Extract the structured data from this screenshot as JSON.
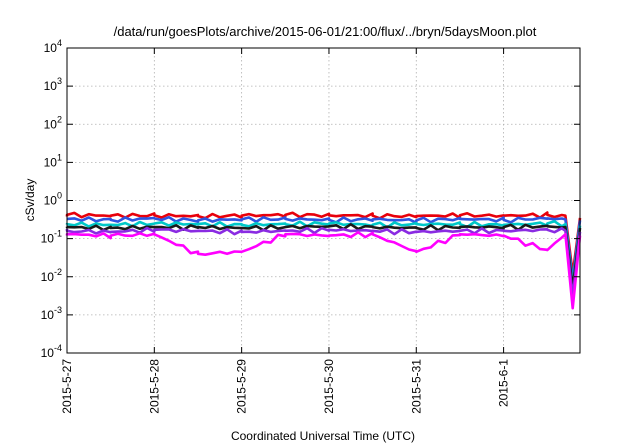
{
  "chart_data": {
    "type": "line",
    "title": "/data/run/goesPlots/archive/2015-06-01/21:00/flux/../bryn/5daysMoon.plot",
    "xlabel": "Coordinated Universal Time (UTC)",
    "ylabel": "cSv/day",
    "y_scale": "log",
    "ylim": [
      0.0001,
      10000
    ],
    "y_ticks": [
      {
        "value": 0.0001,
        "base": "10",
        "exp": "-4"
      },
      {
        "value": 0.001,
        "base": "10",
        "exp": "-3"
      },
      {
        "value": 0.01,
        "base": "10",
        "exp": "-2"
      },
      {
        "value": 0.1,
        "base": "10",
        "exp": "-1"
      },
      {
        "value": 1,
        "base": "10",
        "exp": "0"
      },
      {
        "value": 10,
        "base": "10",
        "exp": "1"
      },
      {
        "value": 100,
        "base": "10",
        "exp": "2"
      },
      {
        "value": 1000,
        "base": "10",
        "exp": "3"
      },
      {
        "value": 10000,
        "base": "10",
        "exp": "4"
      }
    ],
    "x_ticks": [
      "2015-5-27",
      "2015-5-28",
      "2015-5-29",
      "2015-5-30",
      "2015-5-31",
      "2015-6-1"
    ],
    "xlim": [
      "2015-05-27 00:00",
      "2015-06-01 21:00"
    ],
    "grid": true,
    "legend": "none",
    "series": [
      {
        "color": "#e8000b",
        "baseline": 0.4,
        "x": [
          "2015-05-27 00:00",
          "2015-05-27 12:00",
          "2015-05-28 00:00",
          "2015-05-28 12:00",
          "2015-05-29 00:00",
          "2015-05-29 12:00",
          "2015-05-30 00:00",
          "2015-05-30 12:00",
          "2015-05-31 00:00",
          "2015-05-31 12:00",
          "2015-06-01 00:00",
          "2015-06-01 12:00",
          "2015-06-01 17:00",
          "2015-06-01 19:00",
          "2015-06-01 21:00"
        ],
        "values": [
          0.42,
          0.4,
          0.41,
          0.39,
          0.4,
          0.42,
          0.41,
          0.4,
          0.39,
          0.41,
          0.4,
          0.42,
          0.4,
          0.012,
          0.35
        ]
      },
      {
        "color": "#2f55e0",
        "baseline": 0.32,
        "x": [
          "2015-05-27 00:00",
          "2015-05-27 12:00",
          "2015-05-28 00:00",
          "2015-05-28 12:00",
          "2015-05-29 00:00",
          "2015-05-29 12:00",
          "2015-05-30 00:00",
          "2015-05-30 12:00",
          "2015-05-31 00:00",
          "2015-05-31 12:00",
          "2015-06-01 00:00",
          "2015-06-01 12:00",
          "2015-06-01 17:00",
          "2015-06-01 19:00",
          "2015-06-01 21:00"
        ],
        "values": [
          0.33,
          0.31,
          0.34,
          0.3,
          0.32,
          0.33,
          0.31,
          0.32,
          0.3,
          0.33,
          0.31,
          0.34,
          0.32,
          0.008,
          0.3
        ]
      },
      {
        "color": "#00c8c8",
        "baseline": 0.24,
        "x": [
          "2015-05-27 00:00",
          "2015-05-27 12:00",
          "2015-05-28 00:00",
          "2015-05-28 12:00",
          "2015-05-29 00:00",
          "2015-05-29 12:00",
          "2015-05-30 00:00",
          "2015-05-30 12:00",
          "2015-05-31 00:00",
          "2015-05-31 12:00",
          "2015-06-01 00:00",
          "2015-06-01 12:00",
          "2015-06-01 17:00",
          "2015-06-01 19:00",
          "2015-06-01 21:00"
        ],
        "values": [
          0.24,
          0.23,
          0.25,
          0.24,
          0.23,
          0.24,
          0.25,
          0.23,
          0.24,
          0.24,
          0.23,
          0.25,
          0.24,
          0.006,
          0.22
        ]
      },
      {
        "color": "#1a1a1a",
        "baseline": 0.2,
        "x": [
          "2015-05-27 00:00",
          "2015-05-27 12:00",
          "2015-05-28 00:00",
          "2015-05-28 12:00",
          "2015-05-29 00:00",
          "2015-05-29 12:00",
          "2015-05-30 00:00",
          "2015-05-30 12:00",
          "2015-05-31 00:00",
          "2015-05-31 12:00",
          "2015-06-01 00:00",
          "2015-06-01 12:00",
          "2015-06-01 17:00",
          "2015-06-01 19:00",
          "2015-06-01 21:00"
        ],
        "values": [
          0.2,
          0.19,
          0.2,
          0.2,
          0.19,
          0.2,
          0.21,
          0.2,
          0.19,
          0.2,
          0.2,
          0.21,
          0.2,
          0.005,
          0.19
        ]
      },
      {
        "color": "#8a2be2",
        "baseline": 0.16,
        "x": [
          "2015-05-27 00:00",
          "2015-05-27 12:00",
          "2015-05-28 00:00",
          "2015-05-28 12:00",
          "2015-05-29 00:00",
          "2015-05-29 12:00",
          "2015-05-30 00:00",
          "2015-05-30 12:00",
          "2015-05-31 00:00",
          "2015-05-31 12:00",
          "2015-06-01 00:00",
          "2015-06-01 12:00",
          "2015-06-01 17:00",
          "2015-06-01 19:00",
          "2015-06-01 21:00"
        ],
        "values": [
          0.16,
          0.15,
          0.17,
          0.16,
          0.15,
          0.16,
          0.17,
          0.16,
          0.15,
          0.16,
          0.16,
          0.17,
          0.16,
          0.003,
          0.15
        ]
      },
      {
        "color": "#ff00ff",
        "baseline": 0.13,
        "x": [
          "2015-05-27 00:00",
          "2015-05-27 12:00",
          "2015-05-28 00:00",
          "2015-05-28 12:00",
          "2015-05-29 00:00",
          "2015-05-29 12:00",
          "2015-05-30 00:00",
          "2015-05-30 12:00",
          "2015-05-31 00:00",
          "2015-05-31 12:00",
          "2015-06-01 00:00",
          "2015-06-01 12:00",
          "2015-06-01 17:00",
          "2015-06-01 19:00",
          "2015-06-01 21:00"
        ],
        "values": [
          0.13,
          0.12,
          0.13,
          0.04,
          0.045,
          0.13,
          0.12,
          0.13,
          0.045,
          0.13,
          0.12,
          0.05,
          0.13,
          0.0015,
          0.12
        ]
      }
    ]
  }
}
